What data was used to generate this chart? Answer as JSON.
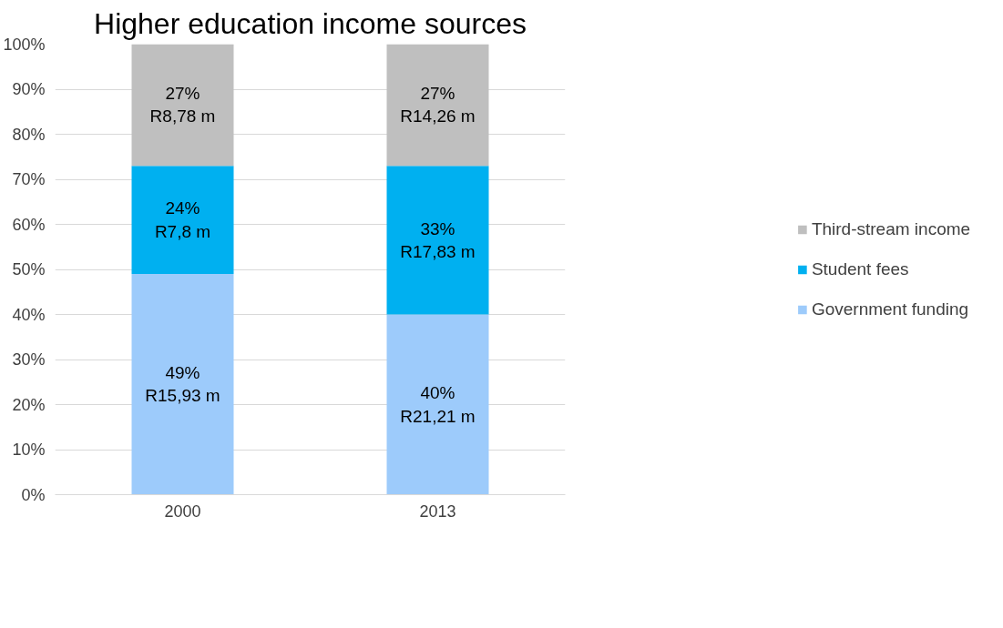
{
  "chart_data": {
    "type": "bar",
    "title": "Higher education income sources",
    "categories": [
      "2000",
      "2013"
    ],
    "stacked": true,
    "legend": "right",
    "grid": "y",
    "ylim": [
      0,
      100
    ],
    "yticks": [
      {
        "value": 0,
        "label": "0%"
      },
      {
        "value": 10,
        "label": "10%"
      },
      {
        "value": 20,
        "label": "20%"
      },
      {
        "value": 30,
        "label": "30%"
      },
      {
        "value": 40,
        "label": "40%"
      },
      {
        "value": 50,
        "label": "50%"
      },
      {
        "value": 60,
        "label": "60%"
      },
      {
        "value": 70,
        "label": "70%"
      },
      {
        "value": 80,
        "label": "80%"
      },
      {
        "value": 90,
        "label": "90%"
      },
      {
        "value": 100,
        "label": "100%"
      }
    ],
    "series": [
      {
        "name": "Government funding",
        "color": "#9dcbfb",
        "values": [
          49,
          40
        ],
        "value_labels": [
          "49%\nR15,93 m",
          "40%\nR21,21 m"
        ]
      },
      {
        "name": "Student fees",
        "color": "#00b0f0",
        "values": [
          24,
          33
        ],
        "value_labels": [
          "24%\nR7,8 m",
          "33%\nR17,83 m"
        ]
      },
      {
        "name": "Third-stream income",
        "color": "#bfbfbf",
        "values": [
          27,
          27
        ],
        "value_labels": [
          "27%\nR8,78 m",
          "27%\nR14,26 m"
        ]
      }
    ]
  }
}
